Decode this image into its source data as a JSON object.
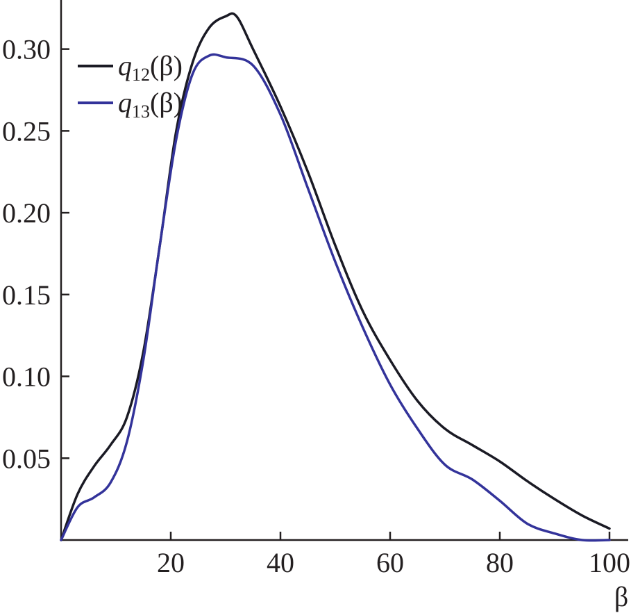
{
  "chart_data": {
    "type": "line",
    "title": "",
    "xlabel": "β",
    "ylabel": "",
    "xlim": [
      0,
      100
    ],
    "ylim": [
      0,
      0.33
    ],
    "grid": false,
    "legend_position": "top-left",
    "x_ticks": [
      20,
      40,
      60,
      80,
      100
    ],
    "x_tick_labels": [
      "20",
      "40",
      "60",
      "80",
      "100"
    ],
    "y_ticks": [
      0.05,
      0.1,
      0.15,
      0.2,
      0.25,
      0.3
    ],
    "y_tick_labels": [
      "0.05",
      "0.10",
      "0.15",
      "0.20",
      "0.25",
      "0.30"
    ],
    "series": [
      {
        "name": "q12(β)",
        "legend_base": "q",
        "legend_sub": "12",
        "legend_arg": "(β)",
        "color": "#1a1a24",
        "x": [
          0,
          3,
          6,
          9,
          12,
          15,
          18,
          21,
          24,
          27,
          30,
          32,
          35,
          40,
          45,
          50,
          55,
          60,
          65,
          70,
          75,
          80,
          85,
          90,
          95,
          100
        ],
        "y": [
          0.0,
          0.028,
          0.045,
          0.058,
          0.075,
          0.115,
          0.18,
          0.25,
          0.292,
          0.313,
          0.32,
          0.32,
          0.3,
          0.265,
          0.225,
          0.18,
          0.14,
          0.11,
          0.085,
          0.068,
          0.058,
          0.048,
          0.036,
          0.025,
          0.015,
          0.007
        ]
      },
      {
        "name": "q13(β)",
        "legend_base": "q",
        "legend_sub": "13",
        "legend_arg": "(β)",
        "color": "#33339a",
        "x": [
          0,
          3,
          6,
          9,
          12,
          15,
          18,
          21,
          24,
          27,
          30,
          35,
          40,
          45,
          50,
          55,
          60,
          65,
          70,
          75,
          80,
          85,
          90,
          95,
          100
        ],
        "y": [
          0.0,
          0.02,
          0.026,
          0.035,
          0.06,
          0.11,
          0.18,
          0.245,
          0.285,
          0.296,
          0.295,
          0.29,
          0.26,
          0.215,
          0.17,
          0.13,
          0.095,
          0.068,
          0.046,
          0.037,
          0.024,
          0.01,
          0.004,
          0.0,
          0.0
        ]
      }
    ]
  }
}
